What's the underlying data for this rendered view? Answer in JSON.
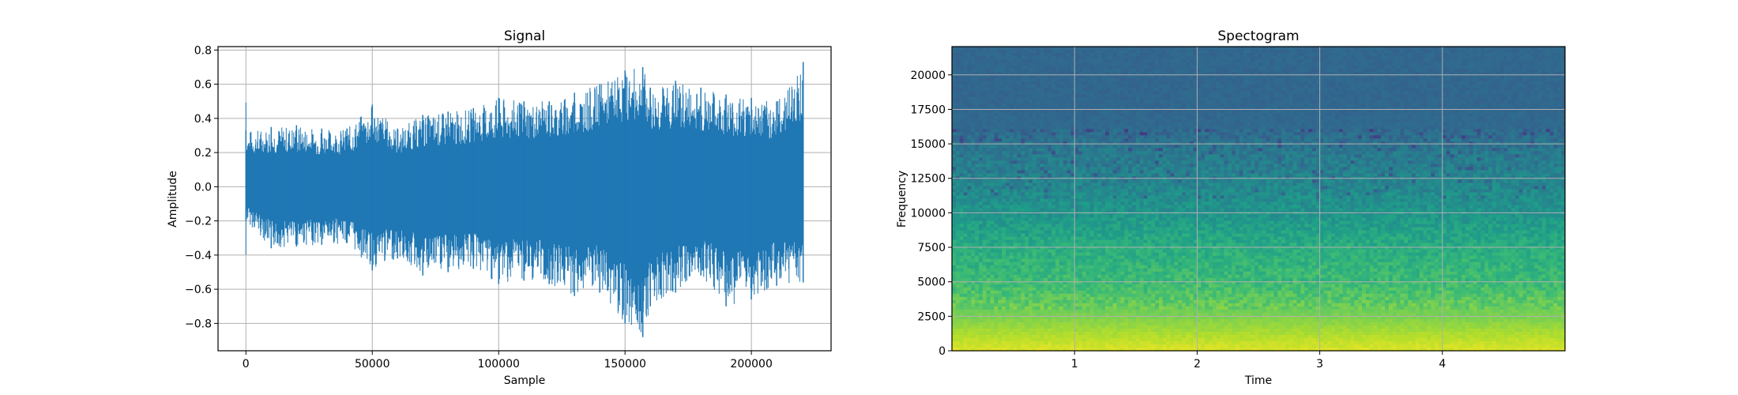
{
  "chart_data": [
    {
      "type": "line",
      "title": "Signal",
      "xlabel": "Sample",
      "ylabel": "Amplitude",
      "xlim": [
        -11025,
        231525
      ],
      "ylim": [
        -0.96,
        0.82
      ],
      "xticks": [
        0,
        50000,
        100000,
        150000,
        200000
      ],
      "xtick_labels": [
        "0",
        "50000",
        "100000",
        "150000",
        "200000"
      ],
      "yticks": [
        0.8,
        0.6,
        0.4,
        0.2,
        0.0,
        -0.2,
        -0.4,
        -0.6,
        -0.8
      ],
      "ytick_labels": [
        "0.8",
        "0.6",
        "0.4",
        "0.2",
        "0.0",
        "−0.2",
        "−0.4",
        "−0.6",
        "−0.8"
      ],
      "grid": true,
      "color": "#1f77b4",
      "series": [
        {
          "x": [
            0,
            10000,
            20000,
            30000,
            40000,
            50000,
            60000,
            70000,
            80000,
            90000,
            100000,
            110000,
            120000,
            130000,
            140000,
            150000,
            157000,
            160000,
            170000,
            180000,
            190000,
            200000,
            210000,
            220500
          ],
          "y_max": [
            0.33,
            0.35,
            0.36,
            0.34,
            0.34,
            0.48,
            0.34,
            0.42,
            0.44,
            0.46,
            0.52,
            0.5,
            0.5,
            0.55,
            0.6,
            0.68,
            0.7,
            0.58,
            0.62,
            0.58,
            0.54,
            0.52,
            0.5,
            0.73
          ],
          "y_min": [
            -0.2,
            -0.36,
            -0.35,
            -0.34,
            -0.33,
            -0.49,
            -0.42,
            -0.52,
            -0.5,
            -0.48,
            -0.57,
            -0.55,
            -0.57,
            -0.64,
            -0.62,
            -0.8,
            -0.88,
            -0.7,
            -0.62,
            -0.52,
            -0.7,
            -0.66,
            -0.58,
            -0.56
          ]
        }
      ]
    },
    {
      "type": "heatmap",
      "title": "Spectogram",
      "xlabel": "Time",
      "ylabel": "Frequency",
      "xlim": [
        0,
        5.0
      ],
      "ylim": [
        0,
        22050
      ],
      "xticks": [
        1,
        2,
        3,
        4
      ],
      "xtick_labels": [
        "1",
        "2",
        "3",
        "4"
      ],
      "yticks": [
        0,
        2500,
        5000,
        7500,
        10000,
        12500,
        15000,
        17500,
        20000
      ],
      "ytick_labels": [
        "0",
        "2500",
        "5000",
        "7500",
        "10000",
        "12500",
        "15000",
        "17500",
        "20000"
      ],
      "grid": true,
      "colormap": "viridis",
      "frequency_profile": [
        {
          "freq": 0,
          "level": 0.95
        },
        {
          "freq": 2500,
          "level": 0.8
        },
        {
          "freq": 5000,
          "level": 0.68
        },
        {
          "freq": 7500,
          "level": 0.62
        },
        {
          "freq": 10000,
          "level": 0.52
        },
        {
          "freq": 12500,
          "level": 0.45
        },
        {
          "freq": 14500,
          "level": 0.4
        },
        {
          "freq": 16000,
          "level": 0.34
        },
        {
          "freq": 17500,
          "level": 0.33
        },
        {
          "freq": 22050,
          "level": 0.33
        }
      ]
    }
  ]
}
